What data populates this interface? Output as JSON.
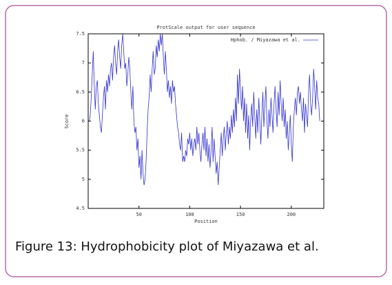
{
  "chart_data": {
    "type": "line",
    "title": "ProtScale output for user sequence",
    "xlabel": "Position",
    "ylabel": "Score",
    "caption": "Figure 13: Hydrophobicity plot of Miyazawa et al.",
    "legend": "upper right",
    "xlim": [
      0,
      232
    ],
    "xticks": [
      50,
      100,
      150,
      200
    ],
    "ylim": [
      4.5,
      7.5
    ],
    "yticks": [
      4.5,
      5,
      5.5,
      6,
      6.5,
      7,
      7.5
    ],
    "x": [
      1,
      2,
      3,
      4,
      5,
      6,
      7,
      8,
      9,
      10,
      11,
      12,
      13,
      14,
      15,
      16,
      17,
      18,
      19,
      20,
      21,
      22,
      23,
      24,
      25,
      26,
      27,
      28,
      29,
      30,
      31,
      32,
      33,
      34,
      35,
      36,
      37,
      38,
      39,
      40,
      41,
      42,
      43,
      44,
      45,
      46,
      47,
      48,
      49,
      50,
      51,
      52,
      53,
      54,
      55,
      56,
      57,
      58,
      59,
      60,
      61,
      62,
      63,
      64,
      65,
      66,
      67,
      68,
      69,
      70,
      71,
      72,
      73,
      74,
      75,
      76,
      77,
      78,
      79,
      80,
      81,
      82,
      83,
      84,
      85,
      86,
      87,
      88,
      89,
      90,
      91,
      92,
      93,
      94,
      95,
      96,
      97,
      98,
      99,
      100,
      101,
      102,
      103,
      104,
      105,
      106,
      107,
      108,
      109,
      110,
      111,
      112,
      113,
      114,
      115,
      116,
      117,
      118,
      119,
      120,
      121,
      122,
      123,
      124,
      125,
      126,
      127,
      128,
      129,
      130,
      131,
      132,
      133,
      134,
      135,
      136,
      137,
      138,
      139,
      140,
      141,
      142,
      143,
      144,
      145,
      146,
      147,
      148,
      149,
      150,
      151,
      152,
      153,
      154,
      155,
      156,
      157,
      158,
      159,
      160,
      161,
      162,
      163,
      164,
      165,
      166,
      167,
      168,
      169,
      170,
      171,
      172,
      173,
      174,
      175,
      176,
      177,
      178,
      179,
      180,
      181,
      182,
      183,
      184,
      185,
      186,
      187,
      188,
      189,
      190,
      191,
      192,
      193,
      194,
      195,
      196,
      197,
      198,
      199,
      200,
      201,
      202,
      203,
      204,
      205,
      206,
      207,
      208,
      209,
      210,
      211,
      212,
      213,
      214,
      215,
      216,
      217,
      218,
      219,
      220,
      221,
      222,
      223,
      224,
      225,
      226,
      227,
      228
    ],
    "series": [
      {
        "name": "Hphob. / Miyazawa et al.",
        "color": "#3030d0",
        "values": [
          6.0,
          6.1,
          6.4,
          6.8,
          7.2,
          6.6,
          6.2,
          6.6,
          6.7,
          6.3,
          6.1,
          5.9,
          5.8,
          6.1,
          6.4,
          6.6,
          6.2,
          6.7,
          6.5,
          6.8,
          6.6,
          6.9,
          7.0,
          6.7,
          7.1,
          7.3,
          7.0,
          6.8,
          7.2,
          7.4,
          7.1,
          6.9,
          7.3,
          7.5,
          7.2,
          6.9,
          7.0,
          6.6,
          6.8,
          7.1,
          6.9,
          6.5,
          6.2,
          6.6,
          6.0,
          5.8,
          5.9,
          5.5,
          5.7,
          5.2,
          5.4,
          5.0,
          5.5,
          5.1,
          4.9,
          5.0,
          5.3,
          5.8,
          6.2,
          6.4,
          6.8,
          6.5,
          6.9,
          7.2,
          6.8,
          6.9,
          7.3,
          7.1,
          7.4,
          7.2,
          7.5,
          7.3,
          7.5,
          7.1,
          6.8,
          7.2,
          6.9,
          6.5,
          6.7,
          6.4,
          6.6,
          6.3,
          6.7,
          6.5,
          6.6,
          6.3,
          6.1,
          5.9,
          5.8,
          5.6,
          5.5,
          5.8,
          5.3,
          5.4,
          5.3,
          5.5,
          5.4,
          5.7,
          5.6,
          5.8,
          5.5,
          5.7,
          5.4,
          5.6,
          5.7,
          5.5,
          5.9,
          5.6,
          5.8,
          5.5,
          5.3,
          5.6,
          5.8,
          5.5,
          5.9,
          5.4,
          5.7,
          5.3,
          5.6,
          5.2,
          5.5,
          5.9,
          5.3,
          5.7,
          5.4,
          5.1,
          5.3,
          4.9,
          5.2,
          5.5,
          5.8,
          5.4,
          5.7,
          5.9,
          5.5,
          5.8,
          6.0,
          5.6,
          5.9,
          5.7,
          6.1,
          5.8,
          6.2,
          5.9,
          6.4,
          6.0,
          6.8,
          6.3,
          6.9,
          6.5,
          6.2,
          6.6,
          6.0,
          6.4,
          5.8,
          6.3,
          5.7,
          6.1,
          5.5,
          6.0,
          6.3,
          5.9,
          6.5,
          6.1,
          5.7,
          6.2,
          5.8,
          6.4,
          6.0,
          5.6,
          6.1,
          6.5,
          5.9,
          6.3,
          6.6,
          6.0,
          5.7,
          6.2,
          5.9,
          6.4,
          6.1,
          5.8,
          6.3,
          6.6,
          6.2,
          5.9,
          6.5,
          6.1,
          6.7,
          6.3,
          6.0,
          6.4,
          5.9,
          6.2,
          5.7,
          6.0,
          5.5,
          5.8,
          6.1,
          5.6,
          5.3,
          5.9,
          6.2,
          6.4,
          6.1,
          6.5,
          6.6,
          6.3,
          6.5,
          6.2,
          6.0,
          6.4,
          5.8,
          6.3,
          6.1,
          5.9,
          6.5,
          6.8,
          6.3,
          6.1,
          6.4,
          6.9,
          6.6,
          6.2,
          6.7,
          6.4,
          6.3,
          6.0
        ]
      }
    ]
  }
}
